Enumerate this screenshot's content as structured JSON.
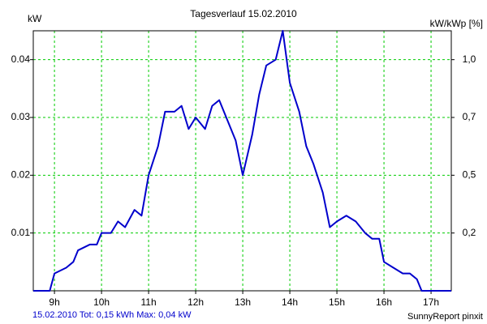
{
  "chart_data": {
    "type": "line",
    "title": "Tagesverlauf 15.02.2010",
    "ylabel": "kW",
    "y2label": "kW/kWp [%]",
    "footer_left": "15.02.2010 Tot: 0,15 kWh Max: 0,04 kW",
    "footer_right": "SunnyReport pinxit",
    "x": [
      8.55,
      8.9,
      9.0,
      9.25,
      9.4,
      9.5,
      9.75,
      9.9,
      10.0,
      10.2,
      10.35,
      10.5,
      10.7,
      10.85,
      11.0,
      11.2,
      11.35,
      11.55,
      11.7,
      11.85,
      12.0,
      12.2,
      12.35,
      12.5,
      12.65,
      12.85,
      13.0,
      13.2,
      13.35,
      13.5,
      13.7,
      13.85,
      14.0,
      14.2,
      14.35,
      14.5,
      14.7,
      14.85,
      15.0,
      15.2,
      15.4,
      15.6,
      15.75,
      15.9,
      16.0,
      16.2,
      16.4,
      16.55,
      16.7,
      16.8,
      17.43
    ],
    "series": [
      {
        "color": "#0000cc",
        "values": [
          0,
          0,
          0.003,
          0.004,
          0.005,
          0.007,
          0.008,
          0.008,
          0.01,
          0.01,
          0.012,
          0.011,
          0.014,
          0.013,
          0.02,
          0.025,
          0.031,
          0.031,
          0.032,
          0.028,
          0.03,
          0.028,
          0.032,
          0.033,
          0.03,
          0.026,
          0.02,
          0.027,
          0.034,
          0.039,
          0.04,
          0.045,
          0.036,
          0.031,
          0.025,
          0.022,
          0.017,
          0.011,
          0.012,
          0.013,
          0.012,
          0.01,
          0.009,
          0.009,
          0.005,
          0.004,
          0.003,
          0.003,
          0.002,
          0,
          0
        ]
      }
    ],
    "xlim": [
      8.55,
      17.43
    ],
    "xticks": [
      {
        "value": 9,
        "label": "9h"
      },
      {
        "value": 10,
        "label": "10h"
      },
      {
        "value": 11,
        "label": "11h"
      },
      {
        "value": 12,
        "label": "12h"
      },
      {
        "value": 13,
        "label": "13h"
      },
      {
        "value": 14,
        "label": "14h"
      },
      {
        "value": 15,
        "label": "15h"
      },
      {
        "value": 16,
        "label": "16h"
      },
      {
        "value": 17,
        "label": "17h"
      }
    ],
    "ylim": [
      0,
      0.045
    ],
    "yticks": [
      0.01,
      0.02,
      0.03,
      0.04
    ],
    "y2lim": [
      0,
      1.1025
    ],
    "y2ticks": [
      {
        "value": 0.245,
        "label": "0,2"
      },
      {
        "value": 0.49,
        "label": "0,5"
      },
      {
        "value": 0.735,
        "label": "0,7"
      },
      {
        "value": 0.98,
        "label": "1,0"
      }
    ],
    "grid": true,
    "grid_color": "#00cc00"
  }
}
